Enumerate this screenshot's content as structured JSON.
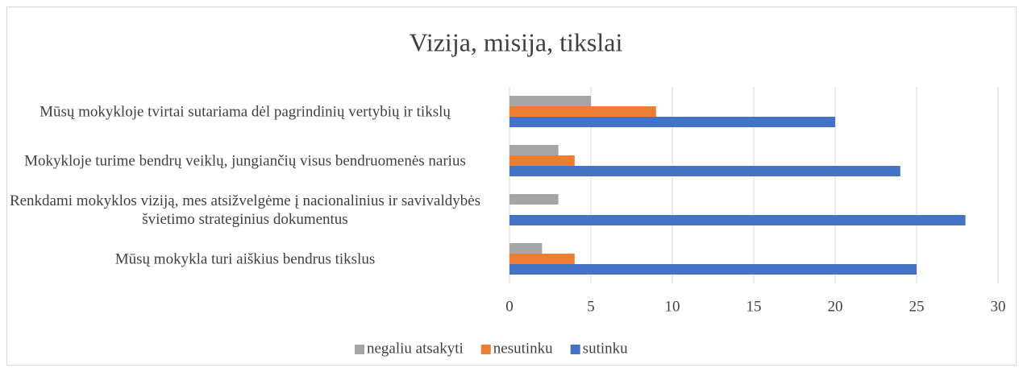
{
  "chart_data": {
    "type": "bar",
    "orientation": "horizontal",
    "title": "Vizija, misija, tikslai",
    "categories": [
      "Mūsų mokykloje tvirtai sutariama dėl pagrindinių vertybių ir tikslų",
      "Mokykloje turime bendrų veiklų, jungiančių visus bendruomenės narius",
      "Renkdami mokyklos viziją, mes atsižvelgėme į nacionalinius ir savivaldybės švietimo strateginius dokumentus",
      "Mūsų mokykla turi aiškius bendrus tikslus"
    ],
    "series": [
      {
        "name": "negaliu atsakyti",
        "color": "#a5a5a5",
        "values": [
          5,
          3,
          3,
          2
        ]
      },
      {
        "name": "nesutinku",
        "color": "#ed7d31",
        "values": [
          9,
          4,
          0,
          4
        ]
      },
      {
        "name": "sutinku",
        "color": "#4472c4",
        "values": [
          20,
          24,
          28,
          25
        ]
      }
    ],
    "xlim": [
      0,
      30
    ],
    "xticks": [
      0,
      5,
      10,
      15,
      20,
      25,
      30
    ],
    "grid": true,
    "legend": "bottom"
  }
}
